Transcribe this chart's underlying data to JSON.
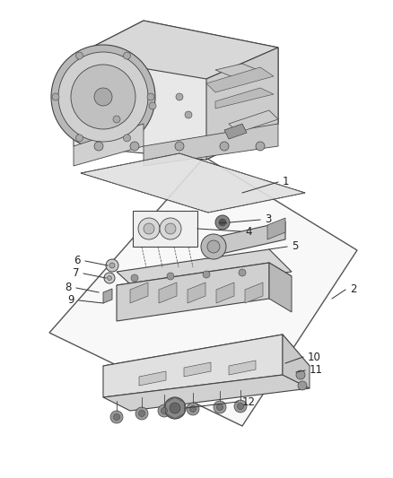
{
  "background_color": "#ffffff",
  "line_color": "#444444",
  "label_color": "#222222",
  "label_fontsize": 8.5,
  "fig_width": 4.38,
  "fig_height": 5.33,
  "dpi": 100
}
